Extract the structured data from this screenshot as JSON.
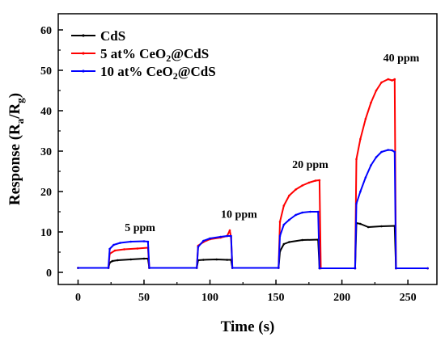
{
  "chart_data": {
    "type": "line",
    "xlabel": "Time (s)",
    "ylabel_main": "Response (R",
    "ylabel_sub1": "a",
    "ylabel_mid": "/R",
    "ylabel_sub2": "g",
    "ylabel_end": ")",
    "xlim": [
      -15,
      272
    ],
    "ylim": [
      -3,
      64
    ],
    "xticks": [
      0,
      50,
      100,
      150,
      200,
      250
    ],
    "yticks": [
      0,
      10,
      20,
      30,
      40,
      50,
      60
    ],
    "legend_position": "top-left",
    "series": [
      {
        "legend": [
          "CdS"
        ],
        "color": "#000000",
        "points": [
          [
            0,
            1.1
          ],
          [
            23,
            1.1
          ],
          [
            24,
            2.4
          ],
          [
            26,
            2.8
          ],
          [
            30,
            3.0
          ],
          [
            40,
            3.2
          ],
          [
            50,
            3.4
          ],
          [
            53,
            3.4
          ],
          [
            54,
            1.1
          ],
          [
            90,
            1.1
          ],
          [
            91,
            3.0
          ],
          [
            95,
            3.1
          ],
          [
            105,
            3.2
          ],
          [
            113,
            3.1
          ],
          [
            116,
            3.1
          ],
          [
            117,
            1.1
          ],
          [
            152,
            1.1
          ],
          [
            153,
            5.2
          ],
          [
            156,
            7.0
          ],
          [
            160,
            7.5
          ],
          [
            170,
            8.0
          ],
          [
            182,
            8.1
          ],
          [
            183,
            1.0
          ],
          [
            210,
            1.0
          ],
          [
            211,
            12.2
          ],
          [
            214,
            12.0
          ],
          [
            220,
            11.2
          ],
          [
            230,
            11.4
          ],
          [
            240,
            11.5
          ],
          [
            241,
            1.0
          ],
          [
            265,
            1.0
          ]
        ]
      },
      {
        "legend": [
          "5 at% CeO",
          "2",
          "@CdS"
        ],
        "color": "#ff0000",
        "points": [
          [
            0,
            1.1
          ],
          [
            23,
            1.1
          ],
          [
            24,
            4.6
          ],
          [
            28,
            5.4
          ],
          [
            35,
            5.7
          ],
          [
            45,
            5.9
          ],
          [
            53,
            6.1
          ],
          [
            54,
            1.1
          ],
          [
            90,
            1.1
          ],
          [
            91,
            6.6
          ],
          [
            95,
            7.5
          ],
          [
            100,
            8.2
          ],
          [
            108,
            8.6
          ],
          [
            113,
            9.0
          ],
          [
            115,
            10.4
          ],
          [
            116,
            8.6
          ],
          [
            117,
            1.1
          ],
          [
            152,
            1.1
          ],
          [
            153,
            12.5
          ],
          [
            156,
            16.5
          ],
          [
            160,
            19.0
          ],
          [
            165,
            20.5
          ],
          [
            170,
            21.5
          ],
          [
            175,
            22.2
          ],
          [
            180,
            22.7
          ],
          [
            183,
            22.8
          ],
          [
            184,
            1.0
          ],
          [
            210,
            1.0
          ],
          [
            211,
            28.0
          ],
          [
            214,
            33.0
          ],
          [
            218,
            38.0
          ],
          [
            222,
            42.0
          ],
          [
            226,
            45.0
          ],
          [
            230,
            47.0
          ],
          [
            235,
            47.8
          ],
          [
            238,
            47.5
          ],
          [
            240,
            47.8
          ],
          [
            241,
            1.0
          ],
          [
            265,
            1.0
          ]
        ]
      },
      {
        "legend": [
          "10 at% CeO",
          "2",
          "@CdS"
        ],
        "color": "#0000ff",
        "points": [
          [
            0,
            1.1
          ],
          [
            23,
            1.1
          ],
          [
            24,
            5.8
          ],
          [
            27,
            6.8
          ],
          [
            32,
            7.3
          ],
          [
            40,
            7.6
          ],
          [
            50,
            7.7
          ],
          [
            53,
            7.6
          ],
          [
            54,
            1.1
          ],
          [
            90,
            1.1
          ],
          [
            91,
            6.3
          ],
          [
            95,
            7.8
          ],
          [
            100,
            8.4
          ],
          [
            108,
            8.8
          ],
          [
            113,
            9.0
          ],
          [
            116,
            9.0
          ],
          [
            117,
            1.1
          ],
          [
            152,
            1.1
          ],
          [
            153,
            9.0
          ],
          [
            156,
            11.8
          ],
          [
            160,
            13.0
          ],
          [
            165,
            14.2
          ],
          [
            170,
            14.8
          ],
          [
            176,
            15.0
          ],
          [
            182,
            15.0
          ],
          [
            183,
            1.0
          ],
          [
            210,
            1.0
          ],
          [
            211,
            17.0
          ],
          [
            214,
            20.0
          ],
          [
            218,
            23.5
          ],
          [
            222,
            26.5
          ],
          [
            226,
            28.5
          ],
          [
            230,
            29.8
          ],
          [
            235,
            30.3
          ],
          [
            238,
            30.2
          ],
          [
            240,
            29.8
          ],
          [
            241,
            1.0
          ],
          [
            265,
            1.0
          ]
        ]
      }
    ],
    "annotations": [
      {
        "text": "5 ppm",
        "x": 47,
        "y": 10.2
      },
      {
        "text": "10 ppm",
        "x": 122,
        "y": 13.5
      },
      {
        "text": "20 ppm",
        "x": 176,
        "y": 25.8
      },
      {
        "text": "40 ppm",
        "x": 245,
        "y": 52.2
      }
    ]
  }
}
